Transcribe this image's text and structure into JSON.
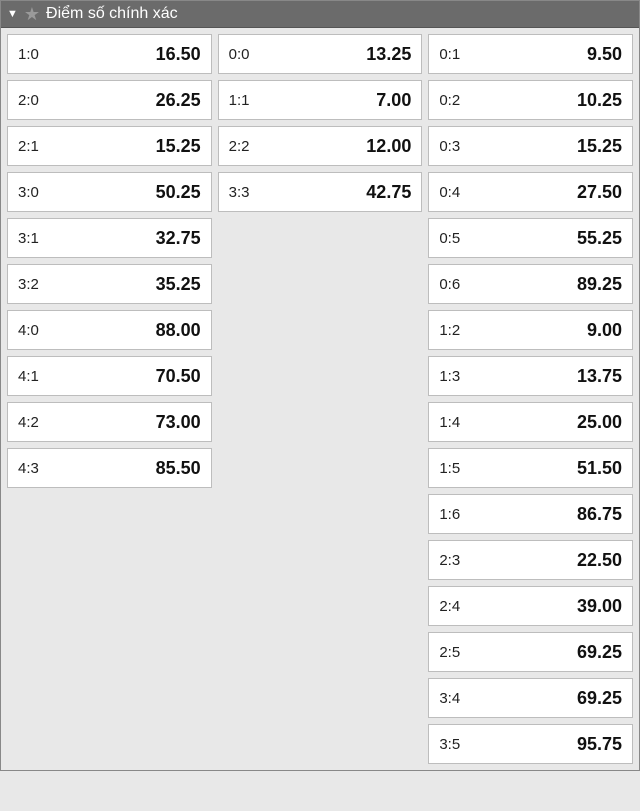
{
  "header": {
    "title": "Điểm số chính xác"
  },
  "columns": {
    "left": [
      {
        "score": "1:0",
        "odds": "16.50"
      },
      {
        "score": "2:0",
        "odds": "26.25"
      },
      {
        "score": "2:1",
        "odds": "15.25"
      },
      {
        "score": "3:0",
        "odds": "50.25"
      },
      {
        "score": "3:1",
        "odds": "32.75"
      },
      {
        "score": "3:2",
        "odds": "35.25"
      },
      {
        "score": "4:0",
        "odds": "88.00"
      },
      {
        "score": "4:1",
        "odds": "70.50"
      },
      {
        "score": "4:2",
        "odds": "73.00"
      },
      {
        "score": "4:3",
        "odds": "85.50"
      }
    ],
    "middle": [
      {
        "score": "0:0",
        "odds": "13.25"
      },
      {
        "score": "1:1",
        "odds": "7.00"
      },
      {
        "score": "2:2",
        "odds": "12.00"
      },
      {
        "score": "3:3",
        "odds": "42.75"
      }
    ],
    "right": [
      {
        "score": "0:1",
        "odds": "9.50"
      },
      {
        "score": "0:2",
        "odds": "10.25"
      },
      {
        "score": "0:3",
        "odds": "15.25"
      },
      {
        "score": "0:4",
        "odds": "27.50"
      },
      {
        "score": "0:5",
        "odds": "55.25"
      },
      {
        "score": "0:6",
        "odds": "89.25"
      },
      {
        "score": "1:2",
        "odds": "9.00"
      },
      {
        "score": "1:3",
        "odds": "13.75"
      },
      {
        "score": "1:4",
        "odds": "25.00"
      },
      {
        "score": "1:5",
        "odds": "51.50"
      },
      {
        "score": "1:6",
        "odds": "86.75"
      },
      {
        "score": "2:3",
        "odds": "22.50"
      },
      {
        "score": "2:4",
        "odds": "39.00"
      },
      {
        "score": "2:5",
        "odds": "69.25"
      },
      {
        "score": "3:4",
        "odds": "69.25"
      },
      {
        "score": "3:5",
        "odds": "95.75"
      }
    ]
  }
}
